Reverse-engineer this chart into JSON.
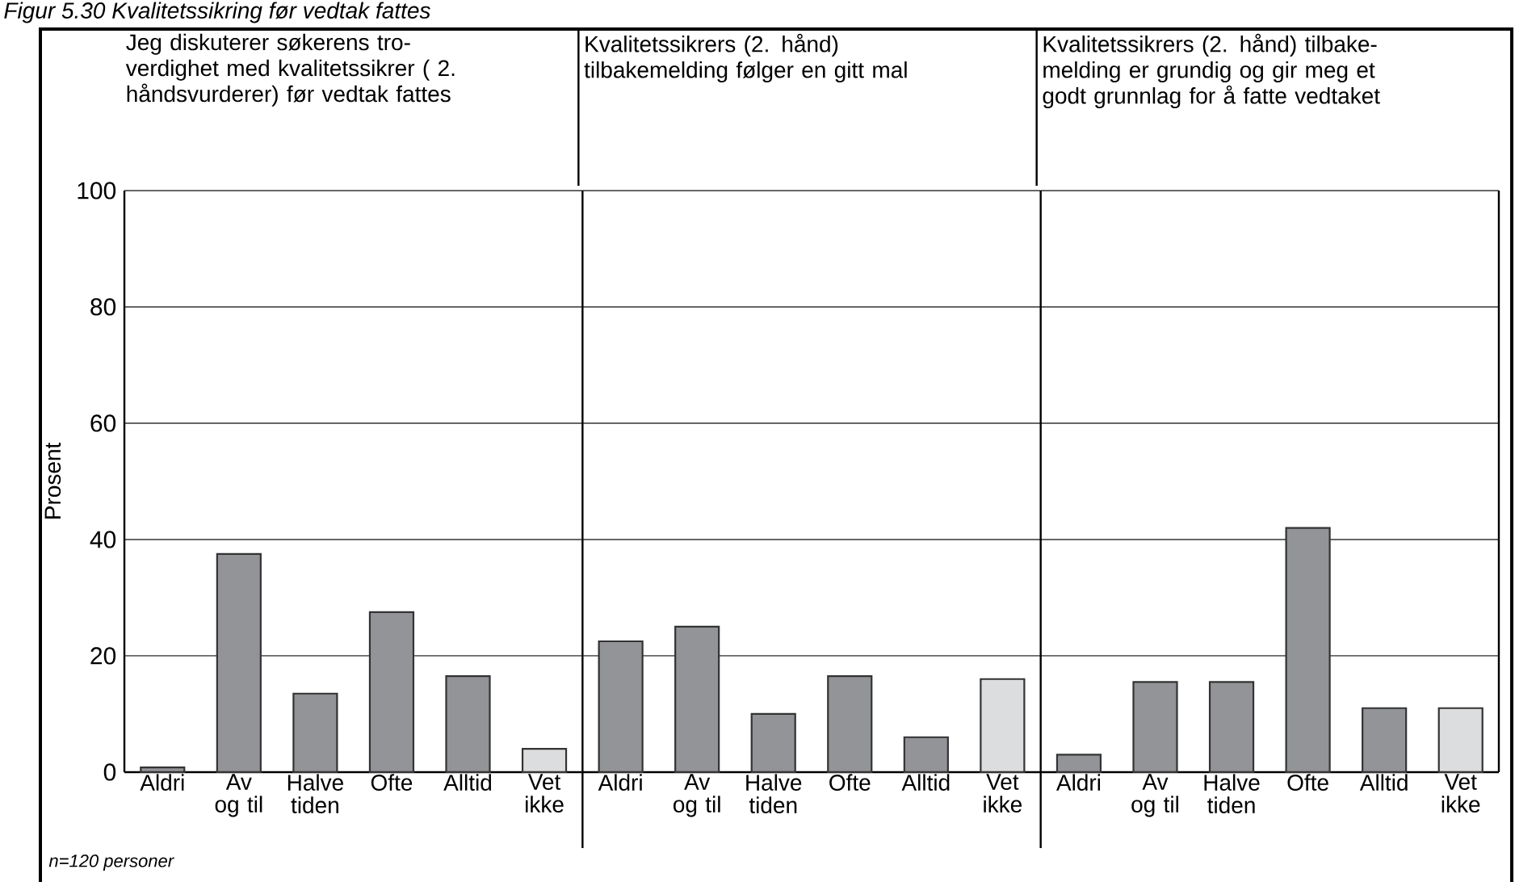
{
  "chart_data": [
    {
      "type": "bar",
      "title": "Jeg diskuterer søkerens tro-verdighet med kvalitetssikrer ( 2. håndsvurderer) før vedtak fattes",
      "ylabel": "Prosent",
      "categories": [
        "Aldri",
        "Av og til",
        "Halve tiden",
        "Ofte",
        "Alltid",
        "Vet ikke"
      ],
      "values": [
        0.8,
        37.5,
        13.5,
        27.5,
        16.5,
        4
      ],
      "colors": [
        "#929497",
        "#929497",
        "#929497",
        "#929497",
        "#929497",
        "#dcddde"
      ],
      "ylim": [
        0,
        100
      ],
      "yticks": [
        0,
        20,
        40,
        60,
        80,
        100
      ],
      "grid": "y",
      "annotations": [
        "Figur 5.30 Kvalitetssikring før vedtak fattes",
        "n=120 personer"
      ]
    },
    {
      "type": "bar",
      "title": "Kvalitetssikrers (2. hånd) tilbakemelding følger en gitt mal",
      "categories": [
        "Aldri",
        "Av og til",
        "Halve tiden",
        "Ofte",
        "Alltid",
        "Vet ikke"
      ],
      "values": [
        22.5,
        25,
        10,
        16.5,
        6,
        16
      ],
      "colors": [
        "#929497",
        "#929497",
        "#929497",
        "#929497",
        "#929497",
        "#dcddde"
      ],
      "ylim": [
        0,
        100
      ],
      "yticks": [
        0,
        20,
        40,
        60,
        80,
        100
      ],
      "grid": "y",
      "tick_labels": "x"
    },
    {
      "type": "bar",
      "title": "Kvalitetssikrers (2. hånd) tilbake-melding er grundig og gir meg et godt grunnlag for å fatte vedtaket",
      "categories": [
        "Aldri",
        "Av og til",
        "Halve tiden",
        "Ofte",
        "Alltid",
        "Vet ikke"
      ],
      "values": [
        3,
        15.5,
        15.5,
        42,
        11,
        11
      ],
      "colors": [
        "#929497",
        "#929497",
        "#929497",
        "#929497",
        "#929497",
        "#dcddde"
      ],
      "ylim": [
        0,
        100
      ],
      "yticks": [
        0,
        20,
        40,
        60,
        80,
        100
      ],
      "grid": "y",
      "tick_labels": "x"
    }
  ]
}
